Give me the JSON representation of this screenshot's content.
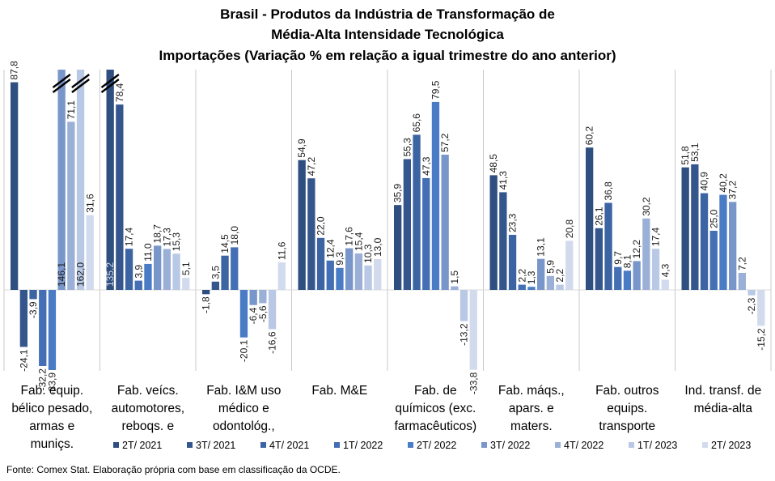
{
  "chart_data": {
    "type": "bar",
    "title_lines": [
      "Brasil - Produtos da Indústria de Transformação  de",
      "Média-Alta  Intensidade Tecnológica",
      "Importações (Variação % em relação a igual trimestre do ano anterior)"
    ],
    "categories": [
      [
        "Fab. equip.",
        "bélico pesado,",
        "armas e",
        "muniçs."
      ],
      [
        "Fab. veícs.",
        "automotores,",
        "reboqs. e"
      ],
      [
        "Fab. I&M uso",
        "médico e",
        "odontológ.,"
      ],
      [
        "Fab. M&E"
      ],
      [
        "Fab. de",
        "químicos (exc.",
        "farmacêuticos)"
      ],
      [
        "Fab. máqs.,",
        "apars. e",
        "maters."
      ],
      [
        "Fab. outros",
        "equips.",
        "transporte"
      ],
      [
        "Ind. transf. de",
        "média-alta"
      ]
    ],
    "series": [
      {
        "name": "2T/ 2021",
        "color": "#2e4f7f",
        "values": [
          87.8,
          135.2,
          -1.8,
          54.9,
          35.9,
          48.5,
          60.2,
          51.8
        ]
      },
      {
        "name": "3T/ 2021",
        "color": "#34568c",
        "values": [
          -24.1,
          78.4,
          3.5,
          47.2,
          55.3,
          41.3,
          26.1,
          53.1
        ]
      },
      {
        "name": "4T/ 2021",
        "color": "#3c64a3",
        "values": [
          -3.9,
          17.4,
          14.5,
          22.0,
          65.6,
          23.3,
          36.8,
          40.9
        ]
      },
      {
        "name": "1T/ 2022",
        "color": "#446fb4",
        "values": [
          -32.2,
          3.9,
          18.0,
          12.4,
          47.3,
          2.2,
          9.7,
          25.0
        ]
      },
      {
        "name": "2T/ 2022",
        "color": "#4a7cc6",
        "values": [
          -33.9,
          11.0,
          -20.1,
          9.3,
          79.5,
          1.3,
          8.1,
          40.2
        ]
      },
      {
        "name": "3T/ 2022",
        "color": "#7896c9",
        "values": [
          146.1,
          18.7,
          -6.4,
          17.6,
          57.2,
          13.1,
          12.2,
          37.2
        ]
      },
      {
        "name": "4T/ 2022",
        "color": "#9bb0d6",
        "values": [
          71.1,
          17.3,
          -5.6,
          15.4,
          1.5,
          5.9,
          30.2,
          7.2
        ]
      },
      {
        "name": "1T/ 2023",
        "color": "#b9c8e4",
        "values": [
          162.0,
          15.3,
          -16.6,
          10.3,
          -13.2,
          2.2,
          17.4,
          -2.3
        ]
      },
      {
        "name": "2T/ 2023",
        "color": "#d2dbee",
        "values": [
          31.6,
          5.1,
          11.6,
          13.0,
          -33.8,
          20.8,
          4.3,
          -15.2
        ]
      }
    ],
    "labels": [
      [
        "87,8",
        "-24,1",
        "-3,9",
        "-32,2",
        "-33,9",
        "146,1",
        "71,1",
        "162,0",
        "31,6"
      ],
      [
        "135,2",
        "78,4",
        "17,4",
        "3,9",
        "11,0",
        "18,7",
        "17,3",
        "15,3",
        "5,1"
      ],
      [
        "-1,8",
        "3,5",
        "14,5",
        "18,0",
        "-20,1",
        "-6,4",
        "-5,6",
        "-16,6",
        "11,6"
      ],
      [
        "54,9",
        "47,2",
        "22,0",
        "12,4",
        "9,3",
        "17,6",
        "15,4",
        "10,3",
        "13,0"
      ],
      [
        "35,9",
        "55,3",
        "65,6",
        "47,3",
        "79,5",
        "57,2",
        "1,5",
        "-13,2",
        "-33,8"
      ],
      [
        "48,5",
        "41,3",
        "23,3",
        "2,2",
        "1,3",
        "13,1",
        "5,9",
        "2,2",
        "20,8"
      ],
      [
        "60,2",
        "26,1",
        "36,8",
        "9,7",
        "8,1",
        "12,2",
        "30,2",
        "17,4",
        "4,3"
      ],
      [
        "51,8",
        "53,1",
        "40,9",
        "25,0",
        "40,2",
        "37,2",
        "7,2",
        "-2,3",
        "-15,2"
      ]
    ],
    "axis_break_cap": 100,
    "legend_position": "bottom",
    "grid": false,
    "source": "Fonte: Comex Stat. Elaboração própria com base em classificação da OCDE."
  }
}
